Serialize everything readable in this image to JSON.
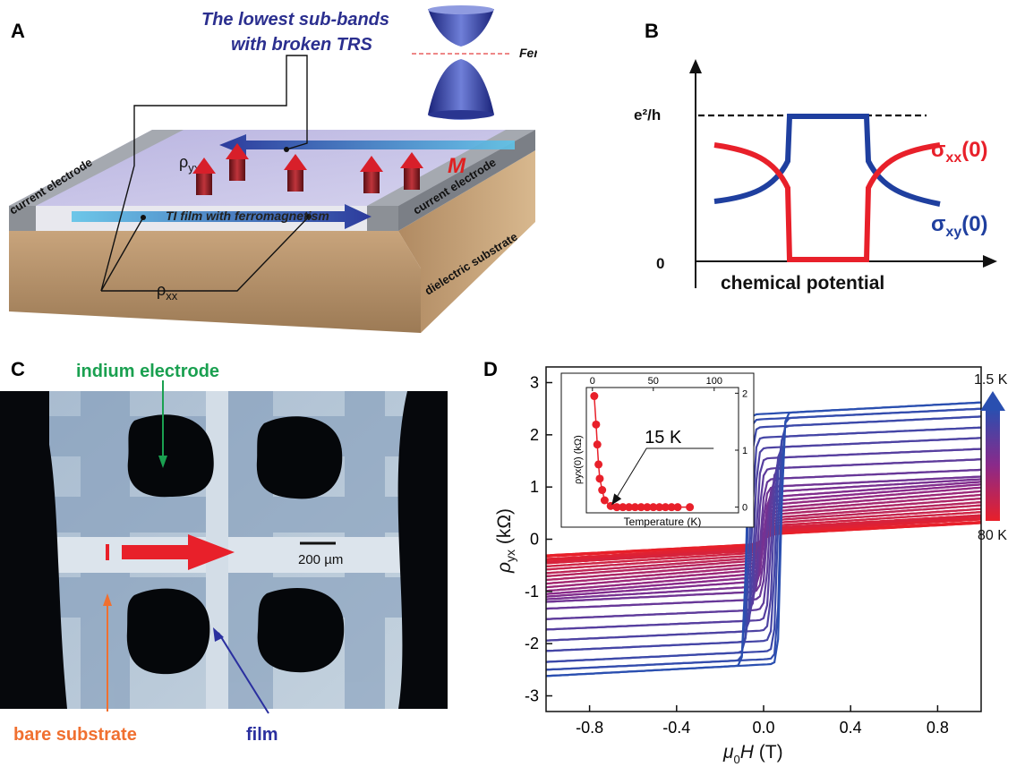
{
  "panels": {
    "a": {
      "letter": "A",
      "title_line1": "The lowest sub-bands",
      "title_line2": "with broken TRS",
      "fermi_label": "Fermi level",
      "left_electrode": "current electrode",
      "right_electrode": "current electrode",
      "substrate_label": "dielectric substrate",
      "film_label": "TI film with ferromagnetism",
      "magnetization_label": "M",
      "rho_yx_label": "ρyx",
      "rho_xx_label": "ρxx",
      "colors": {
        "title": "#2b2f8f",
        "arrow_m": "#e02020",
        "fermi": "#e05050"
      }
    },
    "b": {
      "letter": "B",
      "y_top_label": "e²/h",
      "y_zero_label": "0",
      "x_label": "chemical potential",
      "sigma_xx_label": "σxx(0)",
      "sigma_xy_label": "σxy(0)",
      "colors": {
        "sigma_xx": "#e8202a",
        "sigma_xy": "#1f3f9f"
      }
    },
    "c": {
      "letter": "C",
      "indium_label": "indium electrode",
      "scale_label": "200 µm",
      "bare_label": "bare substrate",
      "film_label": "film",
      "colors": {
        "indium": "#1aa050",
        "bare": "#f07030",
        "film": "#2a2f9f"
      }
    },
    "d": {
      "letter": "D",
      "colorbar_top": "1.5 K",
      "colorbar_bottom": "80 K",
      "inset_annotation": "15 K",
      "colors": {
        "low_T": "#2a4fb0",
        "high_T": "#e8202a"
      }
    }
  },
  "chart_data": [
    {
      "type": "line",
      "panel": "B",
      "title": "",
      "xlabel": "chemical potential",
      "ylabel": "",
      "y_ticks": [
        "0",
        "e²/h"
      ],
      "series": [
        {
          "name": "σxx(0)",
          "x": [
            0,
            0.1,
            0.2,
            0.3,
            0.35,
            0.4,
            0.45,
            0.5,
            0.55,
            0.6,
            0.65,
            0.7,
            0.8,
            0.9,
            1.0
          ],
          "y": [
            0.78,
            0.76,
            0.7,
            0.6,
            0.5,
            0.02,
            0.0,
            0.0,
            0.0,
            0.02,
            0.5,
            0.6,
            0.7,
            0.76,
            0.78
          ]
        },
        {
          "name": "σxy(0)",
          "x": [
            0,
            0.1,
            0.2,
            0.3,
            0.35,
            0.4,
            0.45,
            0.5,
            0.55,
            0.6,
            0.65,
            0.7,
            0.8,
            0.9,
            1.0
          ],
          "y": [
            0.35,
            0.37,
            0.42,
            0.5,
            0.6,
            0.98,
            1.0,
            1.0,
            1.0,
            0.98,
            0.6,
            0.5,
            0.42,
            0.37,
            0.35
          ]
        }
      ],
      "reference_line": {
        "y": 1.0,
        "style": "dashed",
        "label": "e²/h"
      }
    },
    {
      "type": "line",
      "panel": "D",
      "xlabel": "μ0H (T)",
      "ylabel": "ρyx (kΩ)",
      "xlim": [
        -1.0,
        1.0
      ],
      "ylim": [
        -3.3,
        3.3
      ],
      "x_ticks": [
        -0.8,
        -0.4,
        0.0,
        0.4,
        0.8
      ],
      "y_ticks": [
        -3,
        -2,
        -1,
        0,
        1,
        2,
        3
      ],
      "temperature_range_K": [
        1.5,
        80
      ],
      "loops": [
        {
          "T": 1.5,
          "saturation": 2.4,
          "slope": 0.22,
          "coercive": 0.08
        },
        {
          "T": 2,
          "saturation": 2.3,
          "slope": 0.2,
          "coercive": 0.075
        },
        {
          "T": 3,
          "saturation": 2.15,
          "slope": 0.2,
          "coercive": 0.065
        },
        {
          "T": 4,
          "saturation": 1.95,
          "slope": 0.19,
          "coercive": 0.055
        },
        {
          "T": 5,
          "saturation": 1.75,
          "slope": 0.19,
          "coercive": 0.045
        },
        {
          "T": 6,
          "saturation": 1.55,
          "slope": 0.18,
          "coercive": 0.035
        },
        {
          "T": 8,
          "saturation": 1.35,
          "slope": 0.18,
          "coercive": 0.025
        },
        {
          "T": 10,
          "saturation": 1.15,
          "slope": 0.18,
          "coercive": 0.015
        },
        {
          "T": 12,
          "saturation": 1.0,
          "slope": 0.2,
          "coercive": 0.008
        },
        {
          "T": 15,
          "saturation": 0.9,
          "slope": 0.25,
          "coercive": 0.0
        },
        {
          "T": 20,
          "saturation": 0.8,
          "slope": 0.3,
          "coercive": 0.0
        },
        {
          "T": 25,
          "saturation": 0.72,
          "slope": 0.33,
          "coercive": 0.0
        },
        {
          "T": 30,
          "saturation": 0.65,
          "slope": 0.34,
          "coercive": 0.0
        },
        {
          "T": 35,
          "saturation": 0.58,
          "slope": 0.34,
          "coercive": 0.0
        },
        {
          "T": 40,
          "saturation": 0.52,
          "slope": 0.33,
          "coercive": 0.0
        },
        {
          "T": 45,
          "saturation": 0.46,
          "slope": 0.32,
          "coercive": 0.0
        },
        {
          "T": 50,
          "saturation": 0.4,
          "slope": 0.31,
          "coercive": 0.0
        },
        {
          "T": 55,
          "saturation": 0.35,
          "slope": 0.3,
          "coercive": 0.0
        },
        {
          "T": 60,
          "saturation": 0.3,
          "slope": 0.28,
          "coercive": 0.0
        },
        {
          "T": 65,
          "saturation": 0.25,
          "slope": 0.27,
          "coercive": 0.0
        },
        {
          "T": 70,
          "saturation": 0.2,
          "slope": 0.25,
          "coercive": 0.0
        },
        {
          "T": 75,
          "saturation": 0.15,
          "slope": 0.24,
          "coercive": 0.0
        },
        {
          "T": 80,
          "saturation": 0.1,
          "slope": 0.22,
          "coercive": 0.0
        }
      ]
    },
    {
      "type": "scatter",
      "panel": "D-inset",
      "xlabel": "Temperature (K)",
      "ylabel": "ρyx(0) (kΩ)",
      "xlim": [
        -5,
        120
      ],
      "ylim": [
        -0.1,
        2.1
      ],
      "x_ticks": [
        0,
        50,
        100
      ],
      "y_ticks": [
        0,
        1,
        2
      ],
      "x": [
        1.5,
        3,
        4,
        5,
        6,
        8,
        10,
        15,
        20,
        25,
        30,
        35,
        40,
        45,
        50,
        55,
        60,
        65,
        70,
        80
      ],
      "y": [
        1.95,
        1.45,
        1.1,
        0.75,
        0.5,
        0.3,
        0.12,
        0.02,
        0.0,
        0.0,
        0.0,
        0.0,
        0.0,
        0.0,
        0.0,
        0.0,
        0.0,
        0.0,
        0.0,
        0.0
      ]
    }
  ]
}
